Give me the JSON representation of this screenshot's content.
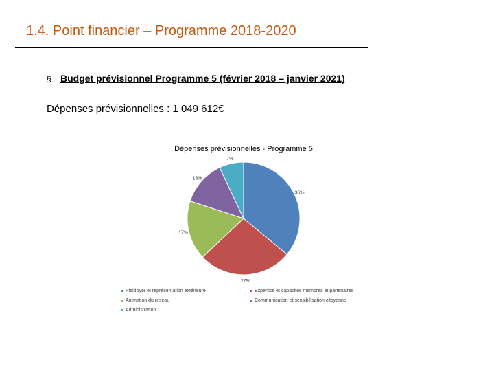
{
  "slide": {
    "title_number": "1.4.",
    "title_text": "Point financier – Programme 2018-2020",
    "title_number_color": "#c55a11",
    "bullet_marker": "§",
    "bullet_text": "Budget prévisionnel Programme 5 (février 2018 – janvier 2021)",
    "total_label": "Dépenses prévisionnelles : 1 049 612€"
  },
  "chart_data": {
    "type": "pie",
    "title": "Dépenses prévisionnelles - Programme 5",
    "legend_position": "bottom",
    "slices": [
      {
        "name": "Plaidoyer et représentation extérieure",
        "value": 36,
        "label": "36%",
        "color": "#4f81bd"
      },
      {
        "name": "Expertise et capacités membres et partenaires",
        "value": 27,
        "label": "27%",
        "color": "#c0504d"
      },
      {
        "name": "Animation du réseau",
        "value": 17,
        "label": "17%",
        "color": "#9bbb59"
      },
      {
        "name": "Communication et sensibilisation citoyenne",
        "value": 13,
        "label": "13%",
        "color": "#8064a2"
      },
      {
        "name": "Administration",
        "value": 7,
        "label": "7%",
        "color": "#4bacc6"
      }
    ]
  }
}
